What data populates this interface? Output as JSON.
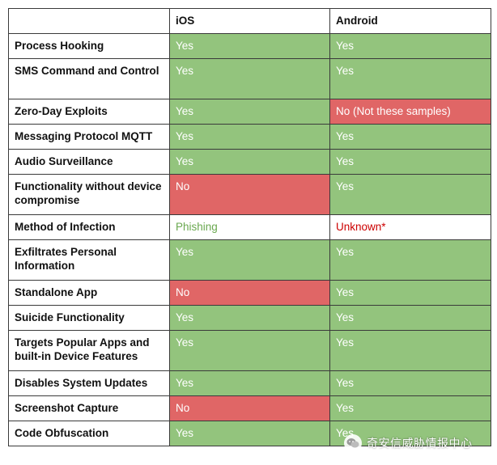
{
  "table": {
    "header": [
      "",
      "iOS",
      "Android"
    ],
    "rows": [
      {
        "feature": "Process Hooking",
        "ios": "Yes",
        "android": "Yes",
        "ios_status": "green",
        "android_status": "green",
        "lines": 1
      },
      {
        "feature": "SMS Command and Control",
        "ios": "Yes",
        "android": "Yes",
        "ios_status": "green",
        "android_status": "green",
        "lines": 2
      },
      {
        "feature": "Zero-Day Exploits",
        "ios": "Yes",
        "android": "No (Not these samples)",
        "ios_status": "green",
        "android_status": "red",
        "lines": 1
      },
      {
        "feature": "Messaging Protocol MQTT",
        "ios": "Yes",
        "android": "Yes",
        "ios_status": "green",
        "android_status": "green",
        "lines": 1
      },
      {
        "feature": "Audio Surveillance",
        "ios": "Yes",
        "android": "Yes",
        "ios_status": "green",
        "android_status": "green",
        "lines": 1
      },
      {
        "feature": "Functionality without device compromise",
        "ios": "No",
        "android": "Yes",
        "ios_status": "red",
        "android_status": "green",
        "lines": 2
      },
      {
        "feature": "Method of Infection",
        "ios": "Phishing",
        "android": "Unknown*",
        "ios_status": "plain-ok",
        "android_status": "plain-warn",
        "lines": 1
      },
      {
        "feature": "Exfiltrates Personal Information",
        "ios": "Yes",
        "android": "Yes",
        "ios_status": "green",
        "android_status": "green",
        "lines": 2
      },
      {
        "feature": "Standalone App",
        "ios": "No",
        "android": "Yes",
        "ios_status": "red",
        "android_status": "green",
        "lines": 1
      },
      {
        "feature": "Suicide Functionality",
        "ios": "Yes",
        "android": "Yes",
        "ios_status": "green",
        "android_status": "green",
        "lines": 1
      },
      {
        "feature": "Targets Popular Apps and built-in Device Features",
        "ios": "Yes",
        "android": "Yes",
        "ios_status": "green",
        "android_status": "green",
        "lines": 2
      },
      {
        "feature": "Disables System Updates",
        "ios": "Yes",
        "android": "Yes",
        "ios_status": "green",
        "android_status": "green",
        "lines": 1
      },
      {
        "feature": "Screenshot Capture",
        "ios": "No",
        "android": "Yes",
        "ios_status": "red",
        "android_status": "green",
        "lines": 1
      },
      {
        "feature": "Code Obfuscation",
        "ios": "Yes",
        "android": "Yes",
        "ios_status": "green",
        "android_status": "green",
        "lines": 1
      }
    ]
  },
  "colors": {
    "green": "#93c47d",
    "red": "#e06666",
    "ok_text": "#6aa84f",
    "warn_text": "#cc0000"
  },
  "watermark": {
    "text": "奇安信威胁情报中心",
    "icon": "wechat-logo-icon"
  }
}
